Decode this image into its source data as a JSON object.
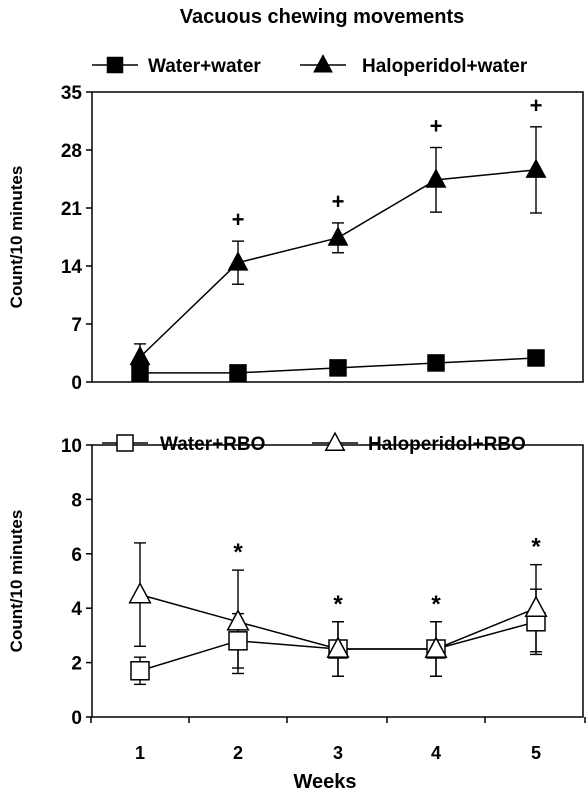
{
  "chart_data": [
    {
      "type": "line",
      "title": "Vacuous chewing movements",
      "ylabel": "Count/10 minutes",
      "xlabel": "",
      "x": [
        1,
        2,
        3,
        4,
        5
      ],
      "ylim": [
        0,
        35
      ],
      "yticks": [
        "0",
        "7",
        "14",
        "21",
        "28",
        "35"
      ],
      "legend": "top",
      "series": [
        {
          "name": "Water+water",
          "marker": "filled-square",
          "values": [
            1.1,
            1.1,
            1.7,
            2.3,
            2.9
          ],
          "errors": [
            0.3,
            0.3,
            0.3,
            0.4,
            0.5
          ]
        },
        {
          "name": "Haloperidol+water",
          "marker": "filled-triangle",
          "values": [
            3.0,
            14.4,
            17.4,
            24.4,
            25.6
          ],
          "errors": [
            1.6,
            2.6,
            1.8,
            3.9,
            5.2
          ]
        }
      ],
      "annotations": [
        {
          "x": 2,
          "text": "+"
        },
        {
          "x": 3,
          "text": "+"
        },
        {
          "x": 4,
          "text": "+"
        },
        {
          "x": 5,
          "text": "+"
        }
      ]
    },
    {
      "type": "line",
      "title": "",
      "ylabel": "Count/10 minutes",
      "xlabel": "Weeks",
      "x": [
        1,
        2,
        3,
        4,
        5
      ],
      "xticks": [
        "1",
        "2",
        "3",
        "4",
        "5"
      ],
      "ylim": [
        0,
        10
      ],
      "yticks": [
        "0",
        "2",
        "4",
        "6",
        "8",
        "10"
      ],
      "legend": "top",
      "series": [
        {
          "name": "Water+RBO",
          "marker": "open-square",
          "values": [
            1.7,
            2.8,
            2.5,
            2.5,
            3.5
          ],
          "errors": [
            0.5,
            1.0,
            1.0,
            1.0,
            1.2
          ]
        },
        {
          "name": "Haloperidol+RBO",
          "marker": "open-triangle",
          "values": [
            4.5,
            3.5,
            2.5,
            2.5,
            4.0
          ],
          "errors": [
            1.9,
            1.9,
            1.0,
            1.0,
            1.6
          ]
        }
      ],
      "annotations": [
        {
          "x": 2,
          "text": "*"
        },
        {
          "x": 3,
          "text": "*"
        },
        {
          "x": 4,
          "text": "*"
        },
        {
          "x": 5,
          "text": "*"
        }
      ]
    }
  ]
}
